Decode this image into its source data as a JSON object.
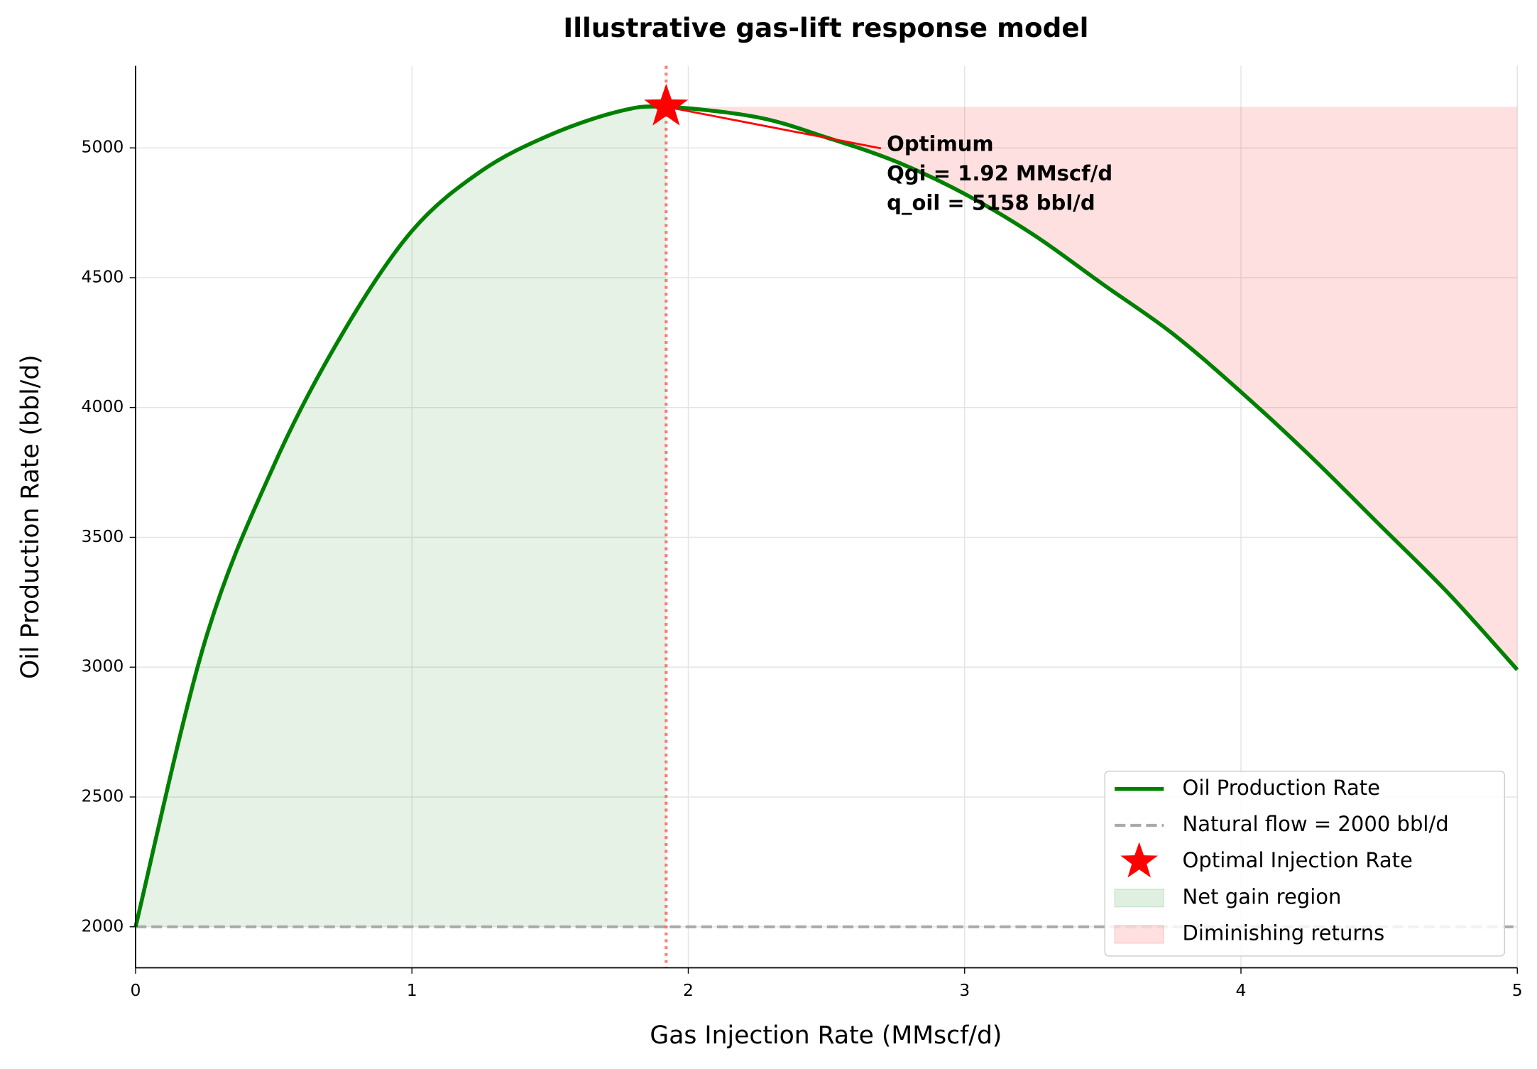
{
  "chart_data": {
    "type": "line",
    "title": "Illustrative gas-lift response model",
    "xlabel": "Gas Injection Rate (MMscf/d)",
    "ylabel": "Oil Production Rate (bbl/d)",
    "x": [
      0,
      0.25,
      0.5,
      0.75,
      1,
      1.25,
      1.5,
      1.75,
      1.92,
      2.25,
      2.5,
      2.75,
      3,
      3.25,
      3.5,
      3.75,
      4,
      4.25,
      4.5,
      4.75,
      5
    ],
    "series": [
      {
        "name": "Oil Production Rate",
        "color": "#008000",
        "values": [
          2000,
          3096,
          3776,
          4287,
          4680,
          4910,
          5050,
          5141,
          5158,
          5118,
          5040,
          4948,
          4823,
          4665,
          4475,
          4287,
          4060,
          3814,
          3550,
          3285,
          2990
        ]
      }
    ],
    "hline": {
      "name": "Natural flow = 2000 bbl/d",
      "value": 2000,
      "color": "#aaaaaa"
    },
    "optimum": {
      "name": "Optimal Injection Rate",
      "x": 1.92,
      "y": 5158,
      "color": "#ff0000"
    },
    "fills": [
      {
        "name": "Net gain region",
        "color": "#008000"
      },
      {
        "name": "Diminishing returns",
        "color": "#ff0000"
      }
    ],
    "annotation": [
      "Optimum",
      "Qgi = 1.92 MMscf/d",
      "q_oil = 5158 bbl/d"
    ],
    "xlim": [
      0,
      5
    ],
    "ylim": [
      1842,
      5316
    ],
    "xticks": [
      0,
      1,
      2,
      3,
      4,
      5
    ],
    "yticks": [
      2000,
      2500,
      3000,
      3500,
      4000,
      4500,
      5000
    ],
    "grid": true,
    "legend": "lower right"
  }
}
